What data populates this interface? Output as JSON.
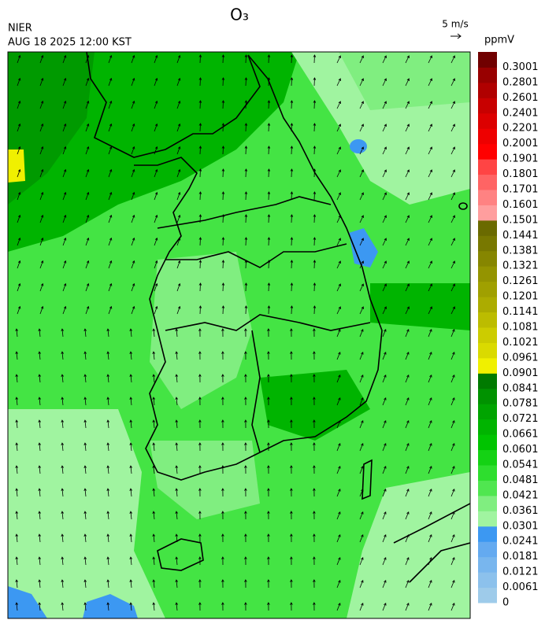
{
  "title": "O₃",
  "agency": "NIER",
  "datetime": "AUG 18 2025 12:00 KST",
  "wind_reference": "5 m/s",
  "colorbar": {
    "unit": "ppmV",
    "levels": [
      0,
      0.0061,
      0.0121,
      0.0181,
      0.0241,
      0.0301,
      0.0361,
      0.0421,
      0.0481,
      0.0541,
      0.0601,
      0.0661,
      0.0721,
      0.0781,
      0.0841,
      0.0901,
      0.0961,
      0.1021,
      0.1081,
      0.1141,
      0.1201,
      0.1261,
      0.1321,
      0.1381,
      0.1441,
      0.1501,
      0.1601,
      0.1701,
      0.1801,
      0.1901,
      0.2001,
      0.2201,
      0.2401,
      0.2601,
      0.2801,
      0.3001
    ],
    "colors": [
      "#9ecbea",
      "#8cc1ec",
      "#78b6ee",
      "#64aaf0",
      "#3c98f2",
      "#a0f4a0",
      "#80ee80",
      "#50e650",
      "#2ede2e",
      "#14d214",
      "#00c400",
      "#00b400",
      "#00a400",
      "#009200",
      "#007a00",
      "#f0f000",
      "#dada00",
      "#cccc00",
      "#bcbc00",
      "#acac00",
      "#a0a000",
      "#949400",
      "#868600",
      "#787800",
      "#6a6a00",
      "#ff9e9e",
      "#ff8282",
      "#ff6464",
      "#ff4444",
      "#ff0000",
      "#ee0000",
      "#dc0000",
      "#c80000",
      "#b00000",
      "#980000",
      "#700000"
    ]
  }
}
